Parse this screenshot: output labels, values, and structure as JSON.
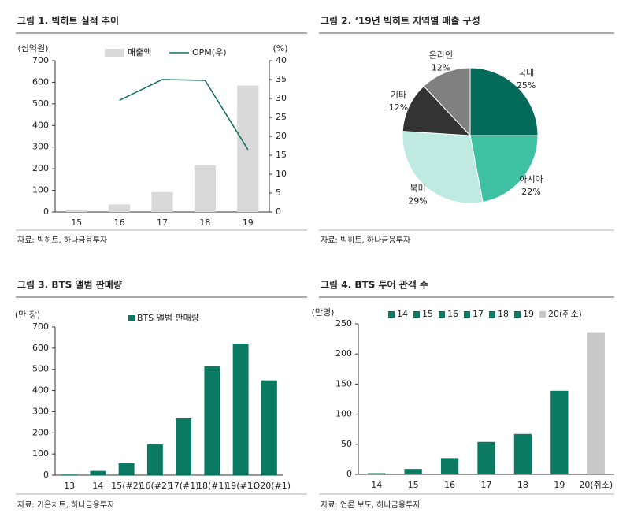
{
  "chart_data": [
    {
      "type": "combo",
      "title": "그림 1. 빅히트 실적 추이",
      "source": "자료: 빅히트, 하나금융투자",
      "y_label": "(십억원)",
      "y2_label": "(%)",
      "categories": [
        "15",
        "16",
        "17",
        "18",
        "19"
      ],
      "series": [
        {
          "name": "매출액",
          "type": "bar",
          "color": "#d9d9d9",
          "values": [
            10,
            35,
            92,
            215,
            585
          ]
        },
        {
          "name": "OPM(우)",
          "type": "line",
          "axis": "y2",
          "color": "#0b6b5e",
          "values": [
            null,
            29.5,
            35,
            34.8,
            16.5
          ]
        }
      ],
      "ylim": [
        0,
        700
      ],
      "yticks": [
        0,
        100,
        200,
        300,
        400,
        500,
        600,
        700
      ],
      "y2lim": [
        0,
        40
      ],
      "y2ticks": [
        0,
        5,
        10,
        15,
        20,
        25,
        30,
        35,
        40
      ],
      "legend": "top"
    },
    {
      "type": "pie",
      "title": "그림 2. ‘19년 빅히트 지역별 매출 구성",
      "source": "자료: 빅히트, 하나금융투자",
      "categories": [
        "국내",
        "아시아",
        "북미",
        "기타",
        "온라인"
      ],
      "values": [
        25,
        22,
        29,
        12,
        12
      ],
      "value_labels": [
        "25%",
        "22%",
        "29%",
        "12%",
        "12%"
      ],
      "colors": [
        "#046b5b",
        "#3dc1a2",
        "#bfeae2",
        "#333333",
        "#808080"
      ]
    },
    {
      "type": "bar",
      "title": "그림 3. BTS 앨범 판매량",
      "source": "자료: 가온차트, 하나금융투자",
      "y_label": "(만 장)",
      "categories": [
        "13",
        "14",
        "15(#2)",
        "16(#2)",
        "17(#1)",
        "18(#1)",
        "19(#1)",
        "1Q20(#1)"
      ],
      "series": [
        {
          "name": "BTS 앨범 판매량",
          "color": "#0b7a63",
          "values": [
            3,
            20,
            57,
            145,
            268,
            515,
            622,
            448
          ]
        }
      ],
      "ylim": [
        0,
        700
      ],
      "yticks": [
        0,
        100,
        200,
        300,
        400,
        500,
        600,
        700
      ],
      "legend": "top"
    },
    {
      "type": "bar",
      "title": "그림 4. BTS 투어 관객 수",
      "source": "자료: 언론 보도, 하나금융투자",
      "y_label": "(만명)",
      "categories": [
        "14",
        "15",
        "16",
        "17",
        "18",
        "19",
        "20(취소)"
      ],
      "values": [
        2,
        9,
        27,
        54,
        67,
        139,
        236
      ],
      "colors": [
        "#0b7a63",
        "#0b7a63",
        "#0b7a63",
        "#0b7a63",
        "#0b7a63",
        "#0b7a63",
        "#c8c8c8"
      ],
      "ylim": [
        0,
        250
      ],
      "yticks": [
        0,
        50,
        100,
        150,
        200,
        250
      ],
      "legend": "top"
    }
  ]
}
